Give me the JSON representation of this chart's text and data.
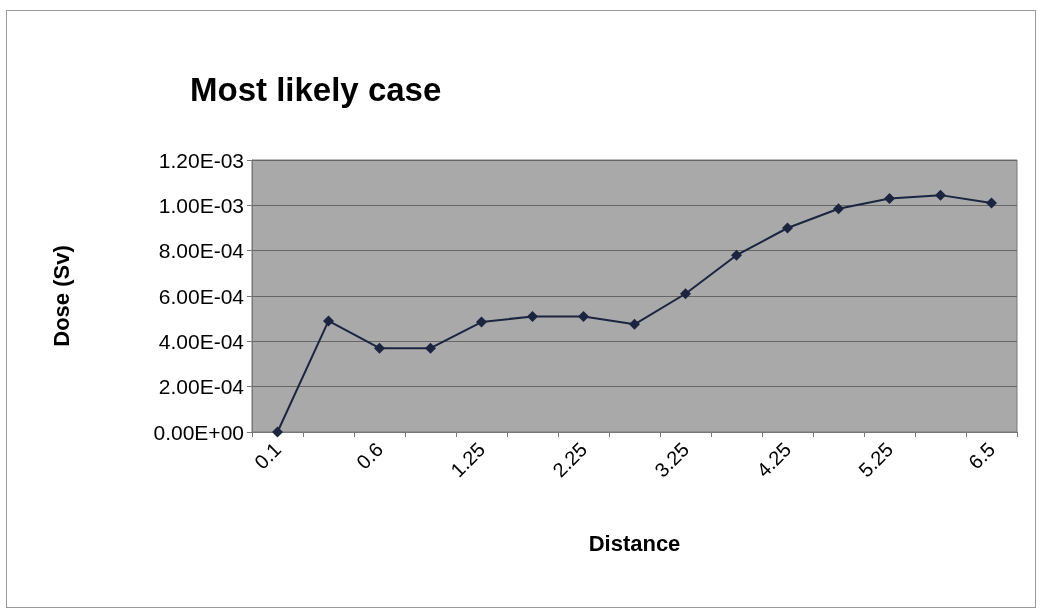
{
  "chart_data": {
    "type": "line",
    "title": "Most likely case",
    "xlabel": "Distance",
    "ylabel": "Dose (Sv)",
    "categories": [
      "0.1",
      null,
      "0.6",
      null,
      "1.25",
      null,
      "2.25",
      null,
      "3.25",
      null,
      "4.25",
      null,
      "5.25",
      null,
      "6.5"
    ],
    "series": [
      {
        "color": "#1c2540",
        "values": [
          0,
          0.00049,
          0.00037,
          0.00037,
          0.000485,
          0.00051,
          0.00051,
          0.000475,
          0.00061,
          0.00078,
          0.0009,
          0.000985,
          0.00103,
          0.001045,
          0.00101
        ]
      }
    ],
    "ylim": [
      0,
      0.0012
    ],
    "yticks": [
      {
        "value": 0,
        "label": "0.00E+00"
      },
      {
        "value": 0.0002,
        "label": "2.00E-04"
      },
      {
        "value": 0.0004,
        "label": "4.00E-04"
      },
      {
        "value": 0.0006,
        "label": "6.00E-04"
      },
      {
        "value": 0.0008,
        "label": "8.00E-04"
      },
      {
        "value": 0.001,
        "label": "1.00E-03"
      },
      {
        "value": 0.0012,
        "label": "1.20E-03"
      }
    ],
    "grid": "y",
    "marker": "diamond",
    "line_style": "solid"
  }
}
